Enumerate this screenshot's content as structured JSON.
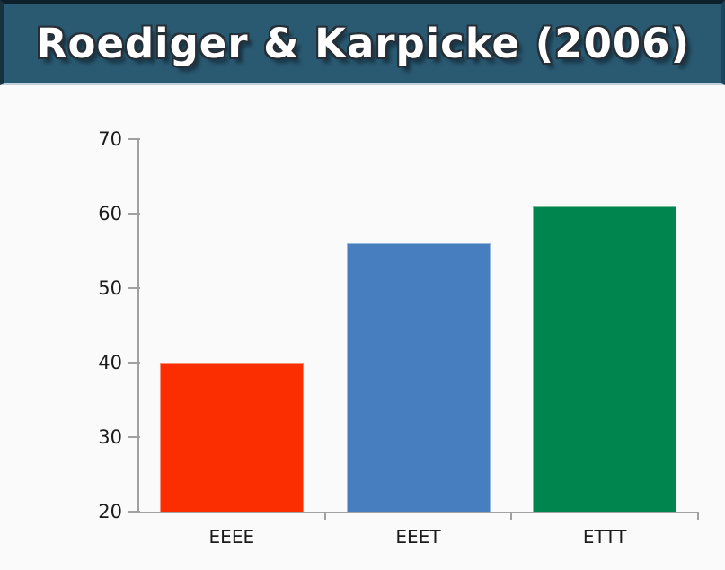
{
  "header": {
    "title": "Roediger & Karpicke (2006)",
    "background_color": "#2a5a72",
    "edge_dark_color": "#16323f",
    "title_color": "#ffffff",
    "title_outline_color": "#262e36"
  },
  "chart_data": {
    "type": "bar",
    "title": "Roediger & Karpicke (2006)",
    "categories": [
      "EEEE",
      "EEET",
      "ETTT"
    ],
    "values": [
      40,
      56,
      61
    ],
    "bar_colors": [
      "#fb2e02",
      "#467ec0",
      "#00854f"
    ],
    "xlabel": "",
    "ylabel": "",
    "ylim": [
      20,
      70
    ],
    "yticks": [
      20,
      30,
      40,
      50,
      60,
      70
    ],
    "grid": false,
    "legend": "none",
    "axis_color": "#a0a0a0",
    "tick_label_color": "#1b1b1b",
    "background_color": "#fbfafa"
  }
}
